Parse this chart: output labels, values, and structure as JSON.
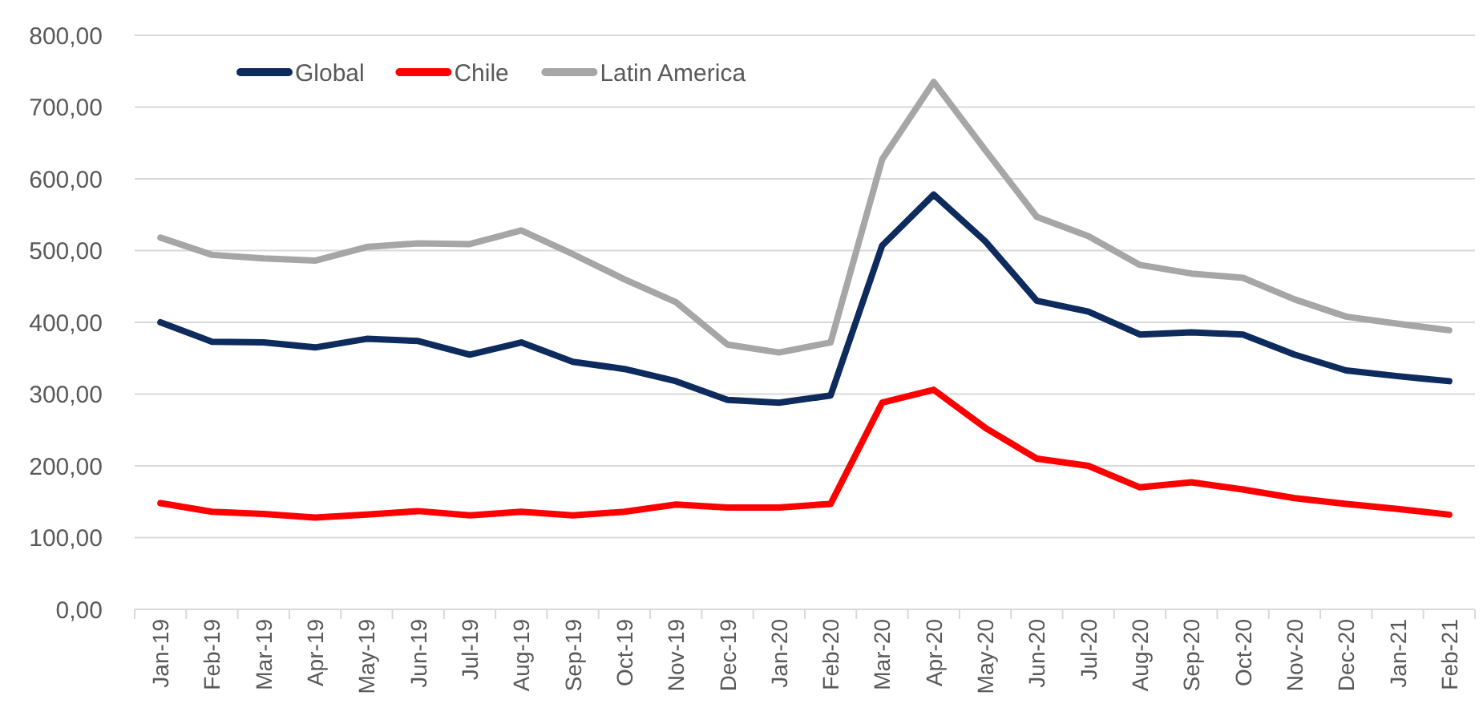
{
  "chart_data": {
    "type": "line",
    "categories": [
      "Jan-19",
      "Feb-19",
      "Mar-19",
      "Apr-19",
      "May-19",
      "Jun-19",
      "Jul-19",
      "Aug-19",
      "Sep-19",
      "Oct-19",
      "Nov-19",
      "Dec-19",
      "Jan-20",
      "Feb-20",
      "Mar-20",
      "Apr-20",
      "May-20",
      "Jun-20",
      "Jul-20",
      "Aug-20",
      "Sep-20",
      "Oct-20",
      "Nov-20",
      "Dec-20",
      "Jan-21",
      "Feb-21"
    ],
    "series": [
      {
        "name": "Global",
        "color": "#0e2b5e",
        "values": [
          400,
          373,
          372,
          365,
          377,
          374,
          355,
          372,
          345,
          335,
          318,
          292,
          288,
          298,
          507,
          578,
          513,
          430,
          415,
          383,
          386,
          383,
          355,
          333,
          325,
          318
        ]
      },
      {
        "name": "Chile",
        "color": "#ff0000",
        "values": [
          148,
          136,
          133,
          128,
          132,
          137,
          131,
          136,
          131,
          136,
          146,
          142,
          142,
          147,
          288,
          306,
          253,
          210,
          200,
          170,
          177,
          167,
          155,
          147,
          140,
          132
        ]
      },
      {
        "name": "Latin America",
        "color": "#a6a6a6",
        "values": [
          518,
          494,
          489,
          486,
          505,
          510,
          509,
          528,
          495,
          460,
          428,
          369,
          358,
          372,
          627,
          735,
          640,
          547,
          520,
          480,
          468,
          462,
          432,
          408,
          398,
          389
        ]
      }
    ],
    "ylim": [
      0,
      800
    ],
    "yticks": [
      {
        "value": 0,
        "label": "0,00"
      },
      {
        "value": 100,
        "label": "100,00"
      },
      {
        "value": 200,
        "label": "200,00"
      },
      {
        "value": 300,
        "label": "300,00"
      },
      {
        "value": 400,
        "label": "400,00"
      },
      {
        "value": 500,
        "label": "500,00"
      },
      {
        "value": 600,
        "label": "600,00"
      },
      {
        "value": 700,
        "label": "700,00"
      },
      {
        "value": 800,
        "label": "800,00"
      }
    ],
    "grid": "y",
    "legend": "top left",
    "marker": "none",
    "line_style": "solid"
  }
}
